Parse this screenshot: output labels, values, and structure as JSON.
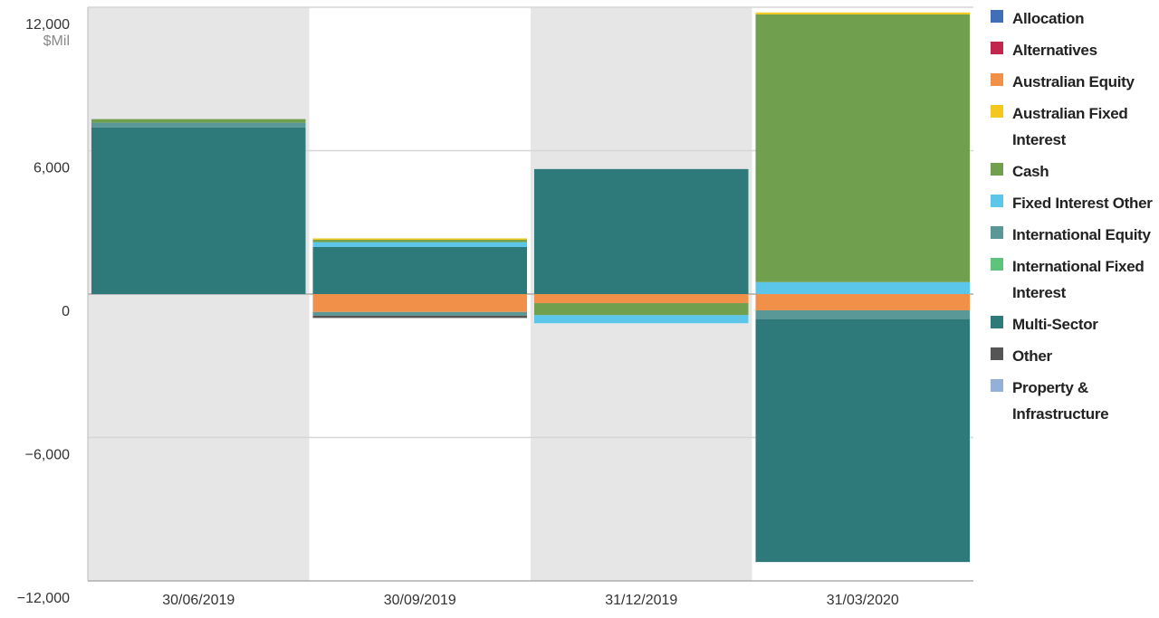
{
  "chart_data": {
    "type": "bar",
    "stacked": true,
    "unit_label": "$Mil",
    "categories": [
      "30/06/2019",
      "30/09/2019",
      "31/12/2019",
      "31/03/2020"
    ],
    "ylim": [
      -12000,
      12000
    ],
    "yticks": [
      {
        "value": -12000,
        "label": "−12,000"
      },
      {
        "value": -6000,
        "label": "−6,000"
      },
      0,
      {
        "value": 6000,
        "label": "6,000"
      },
      {
        "value": 12000,
        "label": "12,000"
      }
    ],
    "grid": true,
    "legend": "right",
    "series": [
      {
        "name": "Allocation",
        "color": "#3f6fb6",
        "values": [
          0,
          0,
          0,
          0
        ]
      },
      {
        "name": "Alternatives",
        "color": "#c2284d",
        "values": [
          0,
          0,
          0,
          0
        ]
      },
      {
        "name": "Australian Equity",
        "color": "#f19048",
        "values": [
          0,
          -750,
          -380,
          -680
        ]
      },
      {
        "name": "Australian Fixed Interest",
        "color": "#f3c71c",
        "values": [
          0,
          60,
          0,
          80
        ]
      },
      {
        "name": "Cash",
        "color": "#70a04e",
        "values": [
          150,
          100,
          -500,
          11200
        ]
      },
      {
        "name": "Fixed Interest Other",
        "color": "#5bc5ea",
        "values": [
          0,
          200,
          -340,
          500
        ]
      },
      {
        "name": "International Equity",
        "color": "#5a9797",
        "values": [
          200,
          -150,
          0,
          -380
        ]
      },
      {
        "name": "International Fixed Interest",
        "color": "#5ec47c",
        "values": [
          0,
          0,
          0,
          0
        ]
      },
      {
        "name": "Multi-Sector",
        "color": "#2e7a7a",
        "values": [
          6970,
          1970,
          5230,
          -10150
        ]
      },
      {
        "name": "Other",
        "color": "#555555",
        "values": [
          0,
          -100,
          0,
          0
        ]
      },
      {
        "name": "Property & Infrastructure",
        "color": "#93b1d8",
        "values": [
          0,
          0,
          0,
          0
        ]
      }
    ]
  }
}
